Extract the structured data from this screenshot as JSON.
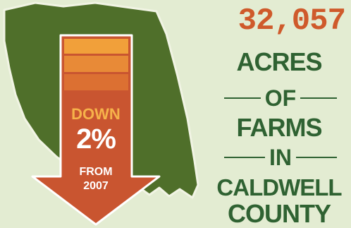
{
  "stat": {
    "value": "32,057",
    "label_line1": "ACRES",
    "label_line2": "OF",
    "label_line3": "FARMS",
    "label_line4": "IN",
    "label_line5": "CALDWELL",
    "label_line6": "COUNTY"
  },
  "arrow": {
    "down": "DOWN",
    "percent": "2%",
    "from": "FROM",
    "year": "2007"
  },
  "colors": {
    "background": "#e3ecd2",
    "county": "#4f6f2a",
    "county_outline": "#f1f4e4",
    "arrow": "#c95530",
    "number": "#cf5a2b",
    "label": "#2f6232",
    "band1": "#f1a03a",
    "band2": "#e88a37",
    "band3": "#dc7032"
  }
}
